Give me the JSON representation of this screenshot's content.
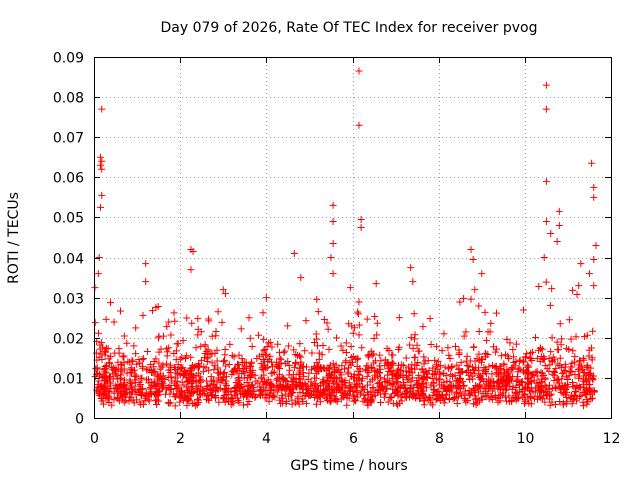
{
  "chart_data": {
    "type": "scatter",
    "title": "Day 079 of 2026, Rate Of TEC Index for receiver pvog",
    "xlabel": "GPS time / hours",
    "ylabel": "ROTI / TECUs",
    "xlim": [
      0,
      12
    ],
    "ylim": [
      0,
      0.09
    ],
    "xticks": [
      "0",
      "2",
      "4",
      "6",
      "8",
      "10",
      "12"
    ],
    "yticks": [
      "0",
      "0.01",
      "0.02",
      "0.03",
      "0.04",
      "0.05",
      "0.06",
      "0.07",
      "0.08",
      "0.09"
    ],
    "grid": true,
    "marker": "+",
    "series_color": "#ff0000",
    "outlier_points": [
      [
        0.18,
        0.077
      ],
      [
        0.15,
        0.065
      ],
      [
        0.18,
        0.064
      ],
      [
        0.15,
        0.063
      ],
      [
        0.18,
        0.062
      ],
      [
        0.18,
        0.0555
      ],
      [
        0.15,
        0.0525
      ],
      [
        0.12,
        0.04
      ],
      [
        0.1,
        0.036
      ],
      [
        1.2,
        0.0385
      ],
      [
        1.2,
        0.034
      ],
      [
        2.25,
        0.042
      ],
      [
        2.3,
        0.0415
      ],
      [
        2.25,
        0.037
      ],
      [
        3.0,
        0.032
      ],
      [
        3.05,
        0.031
      ],
      [
        4.0,
        0.03
      ],
      [
        4.65,
        0.041
      ],
      [
        4.8,
        0.035
      ],
      [
        5.55,
        0.053
      ],
      [
        5.55,
        0.049
      ],
      [
        5.55,
        0.0435
      ],
      [
        5.5,
        0.04
      ],
      [
        5.55,
        0.036
      ],
      [
        6.15,
        0.0865
      ],
      [
        6.15,
        0.073
      ],
      [
        6.2,
        0.0495
      ],
      [
        6.2,
        0.0475
      ],
      [
        5.95,
        0.0325
      ],
      [
        6.55,
        0.0335
      ],
      [
        7.35,
        0.0375
      ],
      [
        7.4,
        0.034
      ],
      [
        8.75,
        0.042
      ],
      [
        8.8,
        0.0395
      ],
      [
        9.0,
        0.036
      ],
      [
        10.5,
        0.083
      ],
      [
        10.5,
        0.077
      ],
      [
        10.5,
        0.059
      ],
      [
        10.5,
        0.049
      ],
      [
        10.6,
        0.046
      ],
      [
        10.8,
        0.0515
      ],
      [
        10.8,
        0.048
      ],
      [
        10.75,
        0.044
      ],
      [
        10.45,
        0.04
      ],
      [
        11.55,
        0.0635
      ],
      [
        11.6,
        0.0575
      ],
      [
        11.6,
        0.055
      ],
      [
        11.65,
        0.043
      ],
      [
        11.6,
        0.0395
      ],
      [
        11.3,
        0.0385
      ],
      [
        11.5,
        0.036
      ],
      [
        11.25,
        0.033
      ],
      [
        11.6,
        0.033
      ]
    ]
  }
}
